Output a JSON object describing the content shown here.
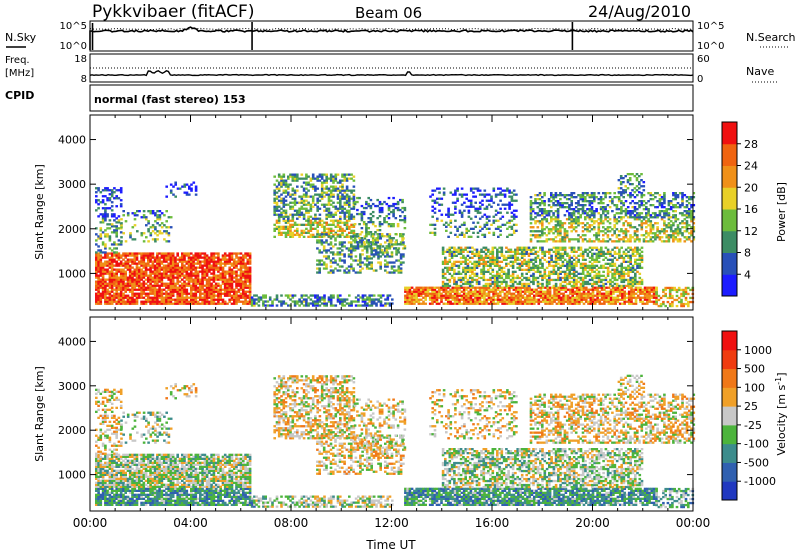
{
  "header": {
    "station": "Pykkvibaer (fitACF)",
    "beam": "Beam 06",
    "date": "24/Aug/2010"
  },
  "nsky_panel": {
    "left_label": "N.Sky",
    "right_label": "N.Search",
    "left_ticks": [
      "10^5",
      "10^0"
    ],
    "right_ticks": [
      "10^5",
      "10^0"
    ]
  },
  "freq_panel": {
    "left_label_1": "Freq.",
    "left_label_2": "[MHz]",
    "right_label": "Nave",
    "left_ticks": [
      "18",
      "8"
    ],
    "right_ticks": [
      "60",
      "0"
    ]
  },
  "cpid_panel": {
    "label": "CPID",
    "text": "normal (fast stereo) 153"
  },
  "chart_data": [
    {
      "type": "heatmap",
      "name": "power",
      "ylabel": "Slant Range [km]",
      "yticks": [
        1000,
        2000,
        3000,
        4000
      ],
      "ylim": [
        180,
        4550
      ],
      "xlim": [
        0,
        24
      ],
      "colorbar": {
        "label": "Power [dB]",
        "ticks": [
          "4",
          "8",
          "12",
          "16",
          "20",
          "24",
          "28"
        ],
        "colors": [
          "#1c1cff",
          "#2850b8",
          "#3c8c64",
          "#6cbc3c",
          "#e8d028",
          "#f09018",
          "#f06410",
          "#f01010"
        ]
      }
    },
    {
      "type": "heatmap",
      "name": "velocity",
      "ylabel": "Slant Range [km]",
      "yticks": [
        1000,
        2000,
        3000,
        4000
      ],
      "ylim": [
        180,
        4550
      ],
      "xlim": [
        0,
        24
      ],
      "xticks": [
        "00:00",
        "04:00",
        "08:00",
        "12:00",
        "16:00",
        "20:00",
        "00:00"
      ],
      "xlabel": "Time UT",
      "colorbar": {
        "label": "Velocity [m s",
        "label_sup": "-1",
        "label_end": "]",
        "ticks": [
          "1000",
          "500",
          "100",
          "25",
          "-25",
          "-100",
          "-500",
          "-1000"
        ],
        "colors": [
          "#2038c0",
          "#3060b0",
          "#3c8c8c",
          "#4cb43c",
          "#c8c8c8",
          "#f0a028",
          "#f07818",
          "#f03c10",
          "#f01010"
        ]
      }
    }
  ]
}
